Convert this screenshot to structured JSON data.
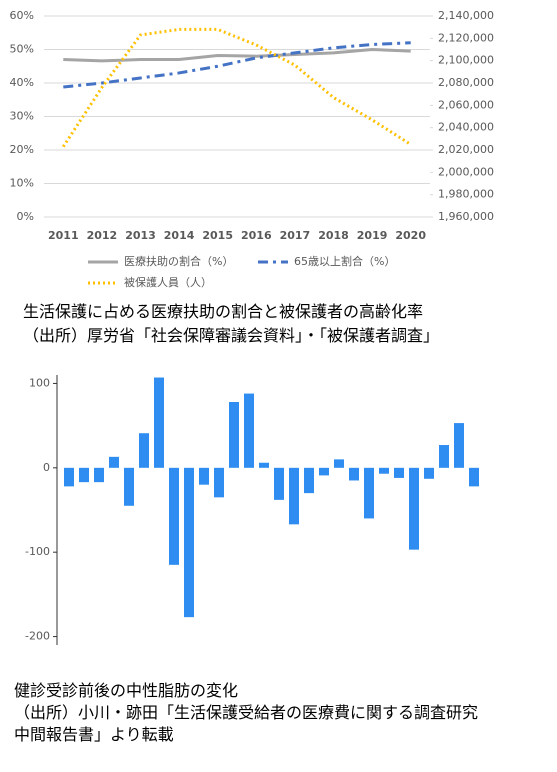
{
  "chart_data": [
    {
      "type": "line",
      "categories": [
        "2011",
        "2012",
        "2013",
        "2014",
        "2015",
        "2016",
        "2017",
        "2018",
        "2019",
        "2020"
      ],
      "series": [
        {
          "name": "医療扶助の割合（%）",
          "color": "#a5a5a5",
          "line_style": "solid",
          "values": [
            47,
            46.6,
            47,
            47,
            48.2,
            48,
            48.5,
            49,
            50,
            49.5
          ]
        },
        {
          "name": "65歳以上割合（%）",
          "color": "#4472c4",
          "line_style": "dashdot",
          "values": [
            38.8,
            40,
            41.5,
            43,
            45,
            47.5,
            49,
            50.5,
            51.5,
            52
          ]
        },
        {
          "name": "被保護人員（人）",
          "color": "#ffc000",
          "line_style": "dotted",
          "axis": "y2",
          "values": [
            2023000,
            2076000,
            2123000,
            2128000,
            2128000,
            2114000,
            2096000,
            2067000,
            2047000,
            2025000
          ]
        }
      ],
      "ylim": [
        0,
        60
      ],
      "yticks": [
        {
          "value": 0,
          "label": "0%"
        },
        {
          "value": 10,
          "label": "10%"
        },
        {
          "value": 20,
          "label": "20%"
        },
        {
          "value": 30,
          "label": "30%"
        },
        {
          "value": 40,
          "label": "40%"
        },
        {
          "value": 50,
          "label": "50%"
        },
        {
          "value": 60,
          "label": "60%"
        }
      ],
      "y2lim": [
        1960000,
        2140000
      ],
      "y2ticks": [
        {
          "value": 1960000,
          "label": "1,960,000"
        },
        {
          "value": 1980000,
          "label": "1,980,000"
        },
        {
          "value": 2000000,
          "label": "2,000,000"
        },
        {
          "value": 2020000,
          "label": "2,020,000"
        },
        {
          "value": 2040000,
          "label": "2,040,000"
        },
        {
          "value": 2060000,
          "label": "2,060,000"
        },
        {
          "value": 2080000,
          "label": "2,080,000"
        },
        {
          "value": 2100000,
          "label": "2,100,000"
        },
        {
          "value": 2120000,
          "label": "2,120,000"
        },
        {
          "value": 2140000,
          "label": "2,140,000"
        }
      ],
      "legend": "bottom",
      "caption": [
        "生活保護に占める医療扶助の割合と被保護者の高齢化率",
        "（出所）厚労省「社会保障審議会資料」・「被保護者調査」"
      ]
    },
    {
      "type": "bar",
      "categories": [
        null,
        null,
        null,
        null,
        null,
        null,
        null,
        null,
        null,
        null,
        null,
        null,
        null,
        null,
        null,
        null,
        null,
        null,
        null,
        null,
        null,
        null,
        null,
        null,
        null,
        null,
        null,
        null
      ],
      "values": [
        -22,
        -17,
        -17,
        13,
        -45,
        41,
        107,
        -115,
        -177,
        -20,
        -35,
        78,
        88,
        6,
        -38,
        -67,
        -30,
        -9,
        10,
        -15,
        -60,
        -7,
        -12,
        -97,
        -13,
        27,
        53,
        -22
      ],
      "color": "#2f8cf0",
      "ylim": [
        -210,
        110
      ],
      "yticks": [
        100,
        0,
        -100,
        -200
      ],
      "caption": [
        "健診受診前後の中性脂肪の変化",
        "（出所）小川・跡田「生活保護受給者の医療費に関する調査研究",
        "中間報告書」より転載"
      ]
    }
  ]
}
